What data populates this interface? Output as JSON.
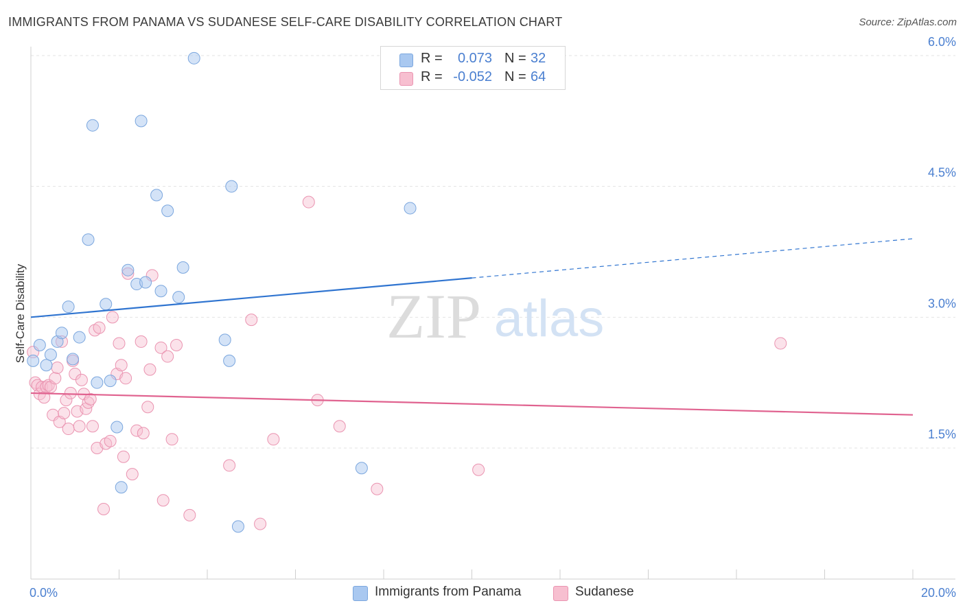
{
  "header": {
    "title": "IMMIGRANTS FROM PANAMA VS SUDANESE SELF-CARE DISABILITY CORRELATION CHART",
    "source": "Source: ZipAtlas.com"
  },
  "watermark": {
    "zip": "ZIP",
    "atlas": "atlas"
  },
  "legend": {
    "rows": [
      {
        "r_label": "R =",
        "r_value": "0.073",
        "n_label": "N =",
        "n_value": "32"
      },
      {
        "r_label": "R =",
        "r_value": "-0.052",
        "n_label": "N =",
        "n_value": "64"
      }
    ],
    "bottom": [
      "Immigrants from Panama",
      "Sudanese"
    ]
  },
  "colors": {
    "panama_fill": "#a9c8f0",
    "panama_stroke": "#7aa6de",
    "panama_line": "#2f74d0",
    "sudanese_fill": "#f7bfd0",
    "sudanese_stroke": "#ea93b0",
    "sudanese_line": "#e0628f",
    "tick_label": "#4a7fd0",
    "grid": "#e3e3e3"
  },
  "chart_data": {
    "type": "scatter",
    "title": "IMMIGRANTS FROM PANAMA VS SUDANESE SELF-CARE DISABILITY CORRELATION CHART",
    "xlabel": "",
    "ylabel": "Self-Care Disability",
    "xlim": [
      0,
      20
    ],
    "ylim": [
      0,
      6.2
    ],
    "x_tick_labels": [
      "0.0%",
      "20.0%"
    ],
    "y_ticks": [
      1.5,
      3.0,
      4.5,
      6.0
    ],
    "y_tick_labels": [
      "1.5%",
      "3.0%",
      "4.5%",
      "6.0%"
    ],
    "grid": true,
    "legend_position": "top-center",
    "series": [
      {
        "name": "Immigrants from Panama",
        "r": 0.073,
        "n": 32,
        "trend": {
          "x": [
            0,
            20
          ],
          "y": [
            3.0,
            3.9
          ],
          "solid_until_x": 10
        },
        "points": [
          [
            0.05,
            2.5
          ],
          [
            0.2,
            2.68
          ],
          [
            0.35,
            2.45
          ],
          [
            0.45,
            2.57
          ],
          [
            0.6,
            2.72
          ],
          [
            0.7,
            2.82
          ],
          [
            0.85,
            3.12
          ],
          [
            0.95,
            2.52
          ],
          [
            1.1,
            2.77
          ],
          [
            1.3,
            3.89
          ],
          [
            1.4,
            5.2
          ],
          [
            1.5,
            2.25
          ],
          [
            1.7,
            3.15
          ],
          [
            1.8,
            2.27
          ],
          [
            1.95,
            1.74
          ],
          [
            2.05,
            1.05
          ],
          [
            2.2,
            3.54
          ],
          [
            2.4,
            3.38
          ],
          [
            2.5,
            5.25
          ],
          [
            2.6,
            3.4
          ],
          [
            2.85,
            4.4
          ],
          [
            2.95,
            3.3
          ],
          [
            3.1,
            4.22
          ],
          [
            3.35,
            3.23
          ],
          [
            3.45,
            3.57
          ],
          [
            3.7,
            5.97
          ],
          [
            4.4,
            2.74
          ],
          [
            4.5,
            2.5
          ],
          [
            4.55,
            4.5
          ],
          [
            4.7,
            0.6
          ],
          [
            7.5,
            1.27
          ],
          [
            8.6,
            4.25
          ]
        ]
      },
      {
        "name": "Sudanese",
        "r": -0.052,
        "n": 64,
        "trend": {
          "x": [
            0,
            20
          ],
          "y": [
            2.13,
            1.88
          ]
        },
        "points": [
          [
            0.05,
            2.6
          ],
          [
            0.1,
            2.25
          ],
          [
            0.15,
            2.22
          ],
          [
            0.2,
            2.12
          ],
          [
            0.25,
            2.2
          ],
          [
            0.3,
            2.08
          ],
          [
            0.35,
            2.2
          ],
          [
            0.4,
            2.22
          ],
          [
            0.45,
            2.2
          ],
          [
            0.5,
            1.88
          ],
          [
            0.55,
            2.3
          ],
          [
            0.6,
            2.42
          ],
          [
            0.65,
            1.8
          ],
          [
            0.7,
            2.72
          ],
          [
            0.75,
            1.9
          ],
          [
            0.8,
            2.05
          ],
          [
            0.85,
            1.72
          ],
          [
            0.9,
            2.13
          ],
          [
            0.95,
            2.5
          ],
          [
            1.0,
            2.35
          ],
          [
            1.05,
            1.92
          ],
          [
            1.1,
            1.75
          ],
          [
            1.15,
            2.28
          ],
          [
            1.2,
            2.12
          ],
          [
            1.25,
            1.95
          ],
          [
            1.3,
            2.02
          ],
          [
            1.35,
            2.06
          ],
          [
            1.4,
            1.75
          ],
          [
            1.45,
            2.85
          ],
          [
            1.5,
            1.5
          ],
          [
            1.55,
            2.88
          ],
          [
            1.65,
            0.8
          ],
          [
            1.7,
            1.55
          ],
          [
            1.8,
            1.58
          ],
          [
            1.85,
            3.0
          ],
          [
            1.95,
            2.35
          ],
          [
            2.0,
            2.7
          ],
          [
            2.05,
            2.45
          ],
          [
            2.1,
            1.4
          ],
          [
            2.15,
            2.3
          ],
          [
            2.2,
            3.5
          ],
          [
            2.3,
            1.2
          ],
          [
            2.4,
            1.7
          ],
          [
            2.5,
            2.72
          ],
          [
            2.55,
            1.67
          ],
          [
            2.65,
            1.97
          ],
          [
            2.7,
            2.4
          ],
          [
            2.75,
            3.48
          ],
          [
            2.95,
            2.65
          ],
          [
            3.0,
            0.9
          ],
          [
            3.1,
            2.55
          ],
          [
            3.2,
            1.6
          ],
          [
            3.3,
            2.68
          ],
          [
            3.6,
            0.73
          ],
          [
            4.5,
            1.3
          ],
          [
            5.0,
            2.97
          ],
          [
            5.2,
            0.63
          ],
          [
            5.5,
            1.6
          ],
          [
            6.3,
            4.32
          ],
          [
            6.5,
            2.05
          ],
          [
            7.0,
            1.75
          ],
          [
            7.85,
            1.03
          ],
          [
            10.15,
            1.25
          ],
          [
            17.0,
            2.7
          ]
        ]
      }
    ]
  }
}
